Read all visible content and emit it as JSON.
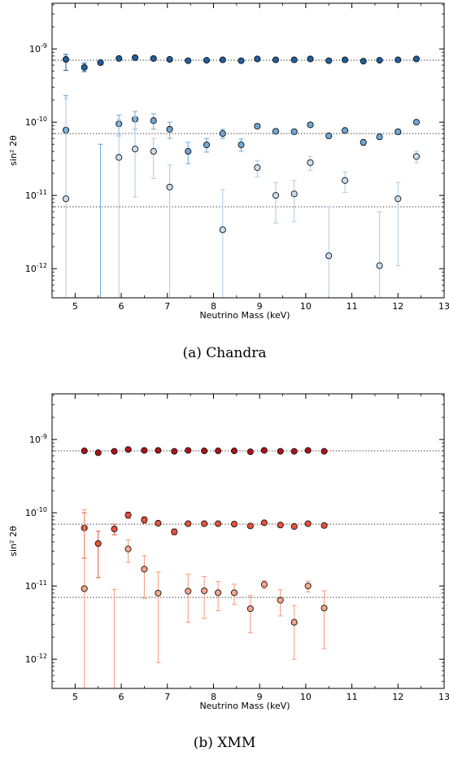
{
  "chart_data": [
    {
      "type": "scatter",
      "panel": "a",
      "caption": "(a) Chandra",
      "xlabel": "Neutrino Mass (keV)",
      "ylabel": "sin² 2θ",
      "y_scale": "log",
      "xlim": [
        4.5,
        13
      ],
      "ylim": [
        4e-13,
        4.2e-09
      ],
      "x_ticks": [
        5,
        6,
        7,
        8,
        9,
        10,
        11,
        12,
        13
      ],
      "y_ticks": [
        {
          "value": 1e-12,
          "base": "10",
          "exp": "-12"
        },
        {
          "value": 1e-11,
          "base": "10",
          "exp": "-11"
        },
        {
          "value": 1e-10,
          "base": "10",
          "exp": "-10"
        },
        {
          "value": 1e-09,
          "base": "10",
          "exp": "-9"
        }
      ],
      "reference_lines": [
        7e-10,
        7e-11,
        7e-12
      ],
      "grid": false,
      "series": [
        {
          "color": "#1f5fa0",
          "error_color": "#1f5fa0",
          "points": [
            {
              "x": 4.8,
              "y": 7.2e-10,
              "lo": 5.1e-10,
              "hi": 8.4e-10
            },
            {
              "x": 5.2,
              "y": 5.6e-10,
              "lo": 4.9e-10,
              "hi": 6.4e-10
            },
            {
              "x": 5.55,
              "y": 6.5e-10,
              "lo": 6.1e-10,
              "hi": 6.9e-10
            },
            {
              "x": 5.95,
              "y": 7.4e-10,
              "lo": 7.1e-10,
              "hi": 7.7e-10
            },
            {
              "x": 6.3,
              "y": 7.6e-10,
              "lo": 7.3e-10,
              "hi": 7.9e-10
            },
            {
              "x": 6.7,
              "y": 7.4e-10,
              "lo": 7.1e-10,
              "hi": 7.7e-10
            },
            {
              "x": 7.05,
              "y": 7.2e-10,
              "lo": 6.9e-10,
              "hi": 7.5e-10
            },
            {
              "x": 7.45,
              "y": 6.9e-10,
              "lo": 6.6e-10,
              "hi": 7.2e-10
            },
            {
              "x": 7.85,
              "y": 7e-10,
              "lo": 6.7e-10,
              "hi": 7.3e-10
            },
            {
              "x": 8.2,
              "y": 7.1e-10,
              "lo": 6.8e-10,
              "hi": 7.4e-10
            },
            {
              "x": 8.6,
              "y": 6.9e-10,
              "lo": 6.6e-10,
              "hi": 7.2e-10
            },
            {
              "x": 8.95,
              "y": 7.3e-10,
              "lo": 7e-10,
              "hi": 7.6e-10
            },
            {
              "x": 9.35,
              "y": 7.1e-10,
              "lo": 6.8e-10,
              "hi": 7.4e-10
            },
            {
              "x": 9.75,
              "y": 7.1e-10,
              "lo": 6.8e-10,
              "hi": 7.4e-10
            },
            {
              "x": 10.1,
              "y": 7.3e-10,
              "lo": 7e-10,
              "hi": 7.6e-10
            },
            {
              "x": 10.5,
              "y": 6.9e-10,
              "lo": 6.6e-10,
              "hi": 7.2e-10
            },
            {
              "x": 10.85,
              "y": 7.1e-10,
              "lo": 6.8e-10,
              "hi": 7.4e-10
            },
            {
              "x": 11.25,
              "y": 6.8e-10,
              "lo": 6.5e-10,
              "hi": 7.1e-10
            },
            {
              "x": 11.6,
              "y": 7e-10,
              "lo": 6.7e-10,
              "hi": 7.3e-10
            },
            {
              "x": 12.0,
              "y": 7.1e-10,
              "lo": 6.8e-10,
              "hi": 7.4e-10
            },
            {
              "x": 12.4,
              "y": 7.3e-10,
              "lo": 7e-10,
              "hi": 7.6e-10
            }
          ]
        },
        {
          "color": "#6fa8d6",
          "error_color": "#6fa8d6",
          "points": [
            {
              "x": 4.8,
              "y": 7.8e-11,
              "lo": 4e-13,
              "hi": 2.3e-10
            },
            {
              "x": 5.55,
              "y": 4e-13,
              "lo": 4e-13,
              "hi": 5e-11,
              "hidden": true
            },
            {
              "x": 5.95,
              "y": 9.5e-11,
              "lo": 6.5e-11,
              "hi": 1.25e-10
            },
            {
              "x": 6.3,
              "y": 1.1e-10,
              "lo": 8e-11,
              "hi": 1.4e-10
            },
            {
              "x": 6.7,
              "y": 1.05e-10,
              "lo": 8e-11,
              "hi": 1.3e-10
            },
            {
              "x": 7.05,
              "y": 8e-11,
              "lo": 6e-11,
              "hi": 1e-10
            },
            {
              "x": 7.45,
              "y": 4e-11,
              "lo": 2.7e-11,
              "hi": 5.3e-11
            },
            {
              "x": 7.85,
              "y": 4.9e-11,
              "lo": 3.9e-11,
              "hi": 6e-11
            },
            {
              "x": 8.2,
              "y": 7e-11,
              "lo": 6e-11,
              "hi": 8e-11
            },
            {
              "x": 8.6,
              "y": 4.9e-11,
              "lo": 4e-11,
              "hi": 5.9e-11
            },
            {
              "x": 8.95,
              "y": 8.8e-11,
              "lo": 8.2e-11,
              "hi": 9.5e-11
            },
            {
              "x": 9.35,
              "y": 7.5e-11,
              "lo": 7e-11,
              "hi": 8.1e-11
            },
            {
              "x": 9.75,
              "y": 7.4e-11,
              "lo": 6.9e-11,
              "hi": 8e-11
            },
            {
              "x": 10.1,
              "y": 9.2e-11,
              "lo": 8.6e-11,
              "hi": 9.9e-11
            },
            {
              "x": 10.5,
              "y": 6.5e-11,
              "lo": 6e-11,
              "hi": 7e-11
            },
            {
              "x": 10.85,
              "y": 7.7e-11,
              "lo": 7.2e-11,
              "hi": 8.3e-11
            },
            {
              "x": 11.25,
              "y": 5.3e-11,
              "lo": 4.8e-11,
              "hi": 5.8e-11
            },
            {
              "x": 11.6,
              "y": 6.3e-11,
              "lo": 5.8e-11,
              "hi": 6.9e-11
            },
            {
              "x": 12.0,
              "y": 7.4e-11,
              "lo": 6.8e-11,
              "hi": 8e-11
            },
            {
              "x": 12.4,
              "y": 1e-10,
              "lo": 9.4e-11,
              "hi": 1.07e-10
            }
          ]
        },
        {
          "color": "#c9dff0",
          "error_color": "#a9cbe6",
          "points": [
            {
              "x": 4.8,
              "y": 9e-12,
              "lo": 4e-13,
              "hi": 2.1e-10
            },
            {
              "x": 5.95,
              "y": 3.3e-11,
              "lo": 4e-13,
              "hi": 1.1e-10
            },
            {
              "x": 6.3,
              "y": 4.3e-11,
              "lo": 9.5e-12,
              "hi": 1.2e-10
            },
            {
              "x": 6.7,
              "y": 4e-11,
              "lo": 1.7e-11,
              "hi": 6e-11
            },
            {
              "x": 7.05,
              "y": 1.3e-11,
              "lo": 4e-13,
              "hi": 2.6e-11
            },
            {
              "x": 8.2,
              "y": 3.4e-12,
              "lo": 4e-13,
              "hi": 1.2e-11
            },
            {
              "x": 8.95,
              "y": 2.4e-11,
              "lo": 1.8e-11,
              "hi": 3e-11
            },
            {
              "x": 9.35,
              "y": 1e-11,
              "lo": 4.2e-12,
              "hi": 1.5e-11
            },
            {
              "x": 9.75,
              "y": 1.05e-11,
              "lo": 4.4e-12,
              "hi": 1.6e-11
            },
            {
              "x": 10.1,
              "y": 2.8e-11,
              "lo": 2.2e-11,
              "hi": 3.4e-11
            },
            {
              "x": 10.5,
              "y": 1.5e-12,
              "lo": 4e-13,
              "hi": 7e-12
            },
            {
              "x": 10.85,
              "y": 1.6e-11,
              "lo": 1.1e-11,
              "hi": 2.1e-11
            },
            {
              "x": 11.6,
              "y": 1.1e-12,
              "lo": 4e-13,
              "hi": 6e-12
            },
            {
              "x": 12.0,
              "y": 9e-12,
              "lo": 1.1e-12,
              "hi": 1.5e-11
            },
            {
              "x": 12.4,
              "y": 3.4e-11,
              "lo": 2.8e-11,
              "hi": 4e-11
            }
          ]
        }
      ]
    },
    {
      "type": "scatter",
      "panel": "b",
      "caption": "(b) XMM",
      "xlabel": "Neutrino Mass (keV)",
      "ylabel": "sin² 2θ",
      "y_scale": "log",
      "xlim": [
        4.5,
        13
      ],
      "ylim": [
        4e-13,
        4.2e-09
      ],
      "x_ticks": [
        5,
        6,
        7,
        8,
        9,
        10,
        11,
        12,
        13
      ],
      "y_ticks": [
        {
          "value": 1e-12,
          "base": "10",
          "exp": "-12"
        },
        {
          "value": 1e-11,
          "base": "10",
          "exp": "-11"
        },
        {
          "value": 1e-10,
          "base": "10",
          "exp": "-10"
        },
        {
          "value": 1e-09,
          "base": "10",
          "exp": "-9"
        }
      ],
      "reference_lines": [
        7e-10,
        7e-11,
        7e-12
      ],
      "grid": false,
      "series": [
        {
          "color": "#b0121b",
          "error_color": "#b0121b",
          "points": [
            {
              "x": 5.2,
              "y": 7e-10,
              "lo": 6.8e-10,
              "hi": 7.2e-10
            },
            {
              "x": 5.5,
              "y": 6.6e-10,
              "lo": 6.4e-10,
              "hi": 6.8e-10
            },
            {
              "x": 5.85,
              "y": 6.9e-10,
              "lo": 6.7e-10,
              "hi": 7.1e-10
            },
            {
              "x": 6.15,
              "y": 7.3e-10,
              "lo": 7.1e-10,
              "hi": 7.5e-10
            },
            {
              "x": 6.5,
              "y": 7.1e-10,
              "lo": 6.9e-10,
              "hi": 7.3e-10
            },
            {
              "x": 6.8,
              "y": 7.1e-10,
              "lo": 6.9e-10,
              "hi": 7.3e-10
            },
            {
              "x": 7.15,
              "y": 6.9e-10,
              "lo": 6.7e-10,
              "hi": 7.1e-10
            },
            {
              "x": 7.45,
              "y": 7.1e-10,
              "lo": 6.9e-10,
              "hi": 7.3e-10
            },
            {
              "x": 7.8,
              "y": 7e-10,
              "lo": 6.8e-10,
              "hi": 7.2e-10
            },
            {
              "x": 8.1,
              "y": 7e-10,
              "lo": 6.8e-10,
              "hi": 7.2e-10
            },
            {
              "x": 8.45,
              "y": 7e-10,
              "lo": 6.8e-10,
              "hi": 7.2e-10
            },
            {
              "x": 8.8,
              "y": 6.8e-10,
              "lo": 6.6e-10,
              "hi": 7e-10
            },
            {
              "x": 9.1,
              "y": 7.1e-10,
              "lo": 6.9e-10,
              "hi": 7.3e-10
            },
            {
              "x": 9.45,
              "y": 6.9e-10,
              "lo": 6.7e-10,
              "hi": 7.1e-10
            },
            {
              "x": 9.75,
              "y": 6.9e-10,
              "lo": 6.7e-10,
              "hi": 7.1e-10
            },
            {
              "x": 10.05,
              "y": 7.1e-10,
              "lo": 6.9e-10,
              "hi": 7.3e-10
            },
            {
              "x": 10.4,
              "y": 6.9e-10,
              "lo": 6.7e-10,
              "hi": 7.1e-10
            }
          ]
        },
        {
          "color": "#e8533a",
          "error_color": "#e8533a",
          "points": [
            {
              "x": 5.2,
              "y": 6.2e-11,
              "lo": 2.4e-11,
              "hi": 1e-10
            },
            {
              "x": 5.5,
              "y": 3.8e-11,
              "lo": 1.3e-11,
              "hi": 5.6e-11
            },
            {
              "x": 5.85,
              "y": 6e-11,
              "lo": 5e-11,
              "hi": 7e-11
            },
            {
              "x": 6.15,
              "y": 9.3e-11,
              "lo": 8.4e-11,
              "hi": 1.02e-10
            },
            {
              "x": 6.5,
              "y": 8e-11,
              "lo": 7.2e-11,
              "hi": 8.8e-11
            },
            {
              "x": 6.8,
              "y": 7.2e-11,
              "lo": 6.8e-11,
              "hi": 7.6e-11
            },
            {
              "x": 7.15,
              "y": 5.5e-11,
              "lo": 5e-11,
              "hi": 6e-11
            },
            {
              "x": 7.45,
              "y": 7.1e-11,
              "lo": 6.7e-11,
              "hi": 7.5e-11
            },
            {
              "x": 7.8,
              "y": 7.1e-11,
              "lo": 6.7e-11,
              "hi": 7.5e-11
            },
            {
              "x": 8.1,
              "y": 7.1e-11,
              "lo": 6.7e-11,
              "hi": 7.5e-11
            },
            {
              "x": 8.45,
              "y": 7e-11,
              "lo": 6.6e-11,
              "hi": 7.4e-11
            },
            {
              "x": 8.8,
              "y": 6.6e-11,
              "lo": 6.2e-11,
              "hi": 7e-11
            },
            {
              "x": 9.1,
              "y": 7.3e-11,
              "lo": 6.9e-11,
              "hi": 7.7e-11
            },
            {
              "x": 9.45,
              "y": 6.8e-11,
              "lo": 6.4e-11,
              "hi": 7.2e-11
            },
            {
              "x": 9.75,
              "y": 6.5e-11,
              "lo": 6.1e-11,
              "hi": 6.9e-11
            },
            {
              "x": 10.05,
              "y": 7.1e-11,
              "lo": 6.7e-11,
              "hi": 7.5e-11
            },
            {
              "x": 10.4,
              "y": 6.7e-11,
              "lo": 6.3e-11,
              "hi": 7.1e-11
            }
          ]
        },
        {
          "color": "#f6a68a",
          "error_color": "#f29a7f",
          "points": [
            {
              "x": 5.2,
              "y": 9.2e-12,
              "lo": 4e-13,
              "hi": 1.1e-10
            },
            {
              "x": 5.85,
              "y": 4e-13,
              "lo": 4e-13,
              "hi": 9e-12,
              "hidden": true
            },
            {
              "x": 6.15,
              "y": 3.2e-11,
              "lo": 2.1e-11,
              "hi": 4.3e-11
            },
            {
              "x": 6.5,
              "y": 1.7e-11,
              "lo": 6.8e-12,
              "hi": 2.6e-11
            },
            {
              "x": 6.8,
              "y": 8e-12,
              "lo": 9e-13,
              "hi": 1.55e-11
            },
            {
              "x": 7.45,
              "y": 8.5e-12,
              "lo": 3.2e-12,
              "hi": 1.45e-11
            },
            {
              "x": 7.8,
              "y": 8.6e-12,
              "lo": 3.6e-12,
              "hi": 1.35e-11
            },
            {
              "x": 8.1,
              "y": 8.1e-12,
              "lo": 4.6e-12,
              "hi": 1.15e-11
            },
            {
              "x": 8.45,
              "y": 8.1e-12,
              "lo": 5.6e-12,
              "hi": 1.06e-11
            },
            {
              "x": 8.8,
              "y": 4.9e-12,
              "lo": 2.3e-12,
              "hi": 7.4e-12
            },
            {
              "x": 9.1,
              "y": 1.05e-11,
              "lo": 9.2e-12,
              "hi": 1.18e-11
            },
            {
              "x": 9.45,
              "y": 6.4e-12,
              "lo": 3.9e-12,
              "hi": 8.9e-12
            },
            {
              "x": 9.75,
              "y": 3.2e-12,
              "lo": 1e-12,
              "hi": 5.4e-12
            },
            {
              "x": 10.05,
              "y": 1e-11,
              "lo": 8.3e-12,
              "hi": 1.17e-11
            },
            {
              "x": 10.4,
              "y": 5e-12,
              "lo": 1.4e-12,
              "hi": 8.6e-12
            }
          ]
        }
      ]
    }
  ]
}
